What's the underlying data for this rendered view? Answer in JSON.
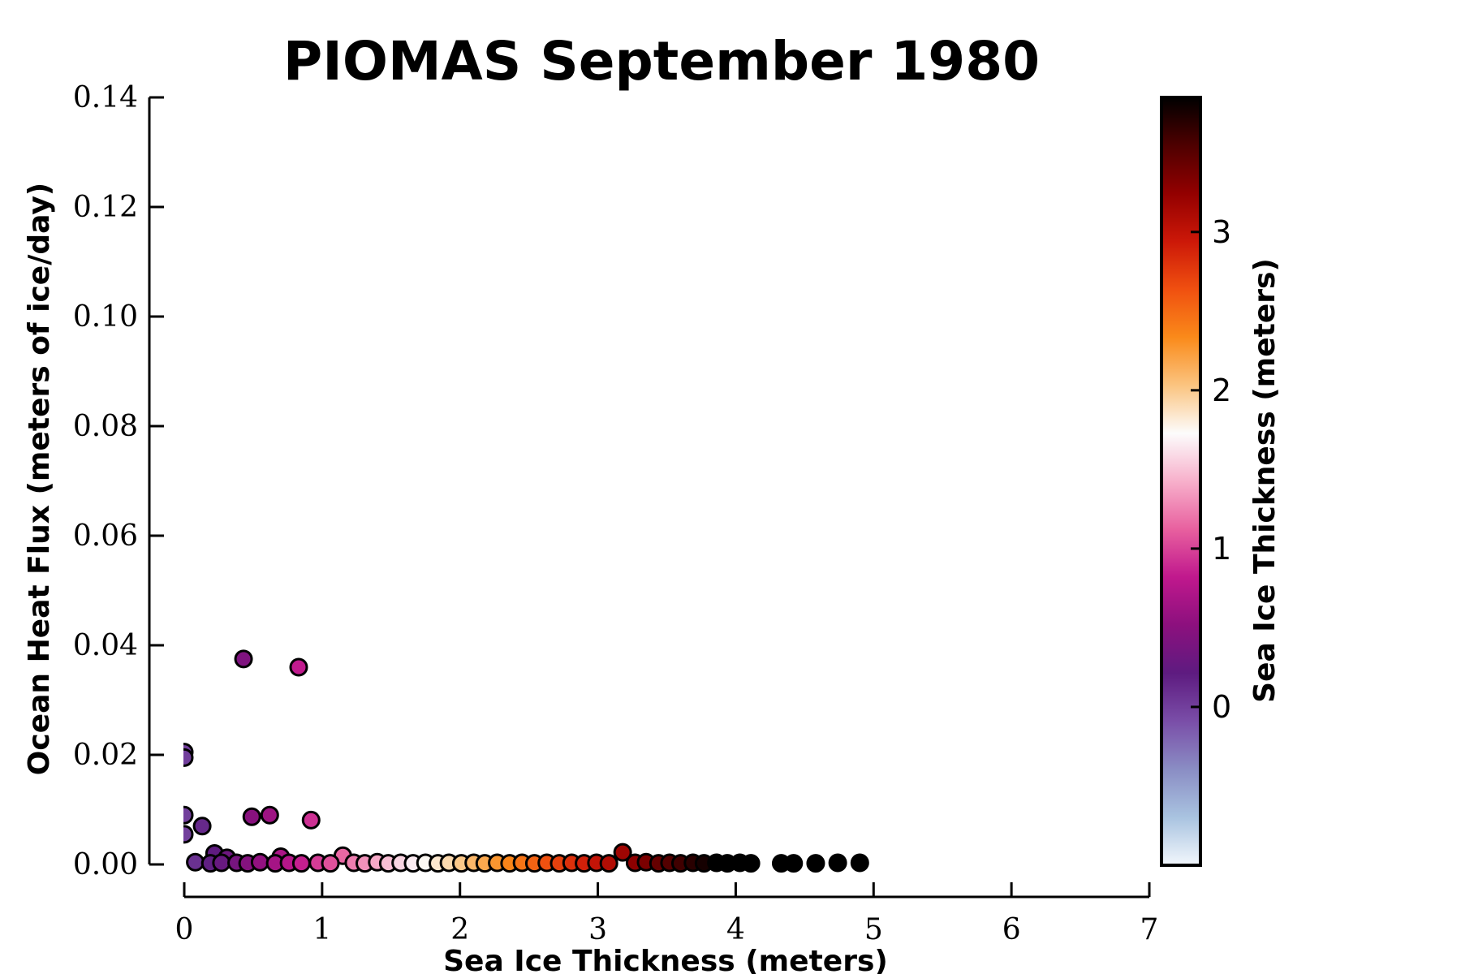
{
  "chart_data": {
    "type": "scatter",
    "title": "PIOMAS September 1980",
    "xlabel": "Sea Ice Thickness (meters)",
    "ylabel": "Ocean Heat Flux (meters of ice/day)",
    "xlim": [
      0,
      7
    ],
    "ylim": [
      0,
      0.14
    ],
    "xticks": [
      "0",
      "1",
      "2",
      "3",
      "4",
      "5",
      "6",
      "7"
    ],
    "yticks": [
      "0.00",
      "0.02",
      "0.04",
      "0.06",
      "0.08",
      "0.10",
      "0.12",
      "0.14"
    ],
    "grid": false,
    "colorbar": {
      "label": "Sea Ice Thickness (meters)",
      "range": [
        -1,
        3.85
      ],
      "ticks": [
        "0",
        "1",
        "2",
        "3"
      ],
      "colors": [
        "#f2f7fc",
        "#a9c3e0",
        "#8a8dc4",
        "#7a4ea8",
        "#5e1b80",
        "#8c107e",
        "#c0188d",
        "#e8609f",
        "#f7b0cb",
        "#fcfcfc",
        "#fbc480",
        "#fa8a1a",
        "#f05010",
        "#cc1808",
        "#930000",
        "#4e0000",
        "#000000"
      ]
    },
    "points": [
      {
        "x": 0.43,
        "y": 0.0375
      },
      {
        "x": 0.83,
        "y": 0.036
      },
      {
        "x": 0.0,
        "y": 0.0205
      },
      {
        "x": 0.0,
        "y": 0.0195
      },
      {
        "x": 0.0,
        "y": 0.009
      },
      {
        "x": 0.0,
        "y": 0.0055
      },
      {
        "x": 0.13,
        "y": 0.007
      },
      {
        "x": 0.49,
        "y": 0.0087
      },
      {
        "x": 0.62,
        "y": 0.009
      },
      {
        "x": 0.92,
        "y": 0.0081
      },
      {
        "x": 0.22,
        "y": 0.002
      },
      {
        "x": 0.31,
        "y": 0.0012
      },
      {
        "x": 0.7,
        "y": 0.0014
      },
      {
        "x": 1.15,
        "y": 0.0016
      },
      {
        "x": 3.18,
        "y": 0.0022
      },
      {
        "x": 0.08,
        "y": 0.0004
      },
      {
        "x": 0.19,
        "y": 0.0002
      },
      {
        "x": 0.27,
        "y": 0.0003
      },
      {
        "x": 0.38,
        "y": 0.0003
      },
      {
        "x": 0.46,
        "y": 0.0002
      },
      {
        "x": 0.55,
        "y": 0.0004
      },
      {
        "x": 0.66,
        "y": 0.0002
      },
      {
        "x": 0.76,
        "y": 0.0003
      },
      {
        "x": 0.85,
        "y": 0.0002
      },
      {
        "x": 0.97,
        "y": 0.0003
      },
      {
        "x": 1.06,
        "y": 0.0002
      },
      {
        "x": 1.23,
        "y": 0.0003
      },
      {
        "x": 1.31,
        "y": 0.0002
      },
      {
        "x": 1.4,
        "y": 0.0004
      },
      {
        "x": 1.48,
        "y": 0.0002
      },
      {
        "x": 1.57,
        "y": 0.0003
      },
      {
        "x": 1.66,
        "y": 0.0002
      },
      {
        "x": 1.75,
        "y": 0.0003
      },
      {
        "x": 1.84,
        "y": 0.0002
      },
      {
        "x": 1.92,
        "y": 0.0003
      },
      {
        "x": 2.01,
        "y": 0.0002
      },
      {
        "x": 2.1,
        "y": 0.0003
      },
      {
        "x": 2.18,
        "y": 0.0002
      },
      {
        "x": 2.27,
        "y": 0.0003
      },
      {
        "x": 2.36,
        "y": 0.0002
      },
      {
        "x": 2.45,
        "y": 0.0003
      },
      {
        "x": 2.54,
        "y": 0.0002
      },
      {
        "x": 2.63,
        "y": 0.0003
      },
      {
        "x": 2.72,
        "y": 0.0002
      },
      {
        "x": 2.81,
        "y": 0.0003
      },
      {
        "x": 2.9,
        "y": 0.0002
      },
      {
        "x": 2.99,
        "y": 0.0003
      },
      {
        "x": 3.08,
        "y": 0.0002
      },
      {
        "x": 3.27,
        "y": 0.0003
      },
      {
        "x": 3.35,
        "y": 0.0004
      },
      {
        "x": 3.44,
        "y": 0.0002
      },
      {
        "x": 3.52,
        "y": 0.0003
      },
      {
        "x": 3.6,
        "y": 0.0002
      },
      {
        "x": 3.69,
        "y": 0.0003
      },
      {
        "x": 3.77,
        "y": 0.0002
      },
      {
        "x": 3.86,
        "y": 0.0003
      },
      {
        "x": 3.94,
        "y": 0.0002
      },
      {
        "x": 4.03,
        "y": 0.0003
      },
      {
        "x": 4.11,
        "y": 0.0002
      },
      {
        "x": 4.33,
        "y": 0.0002
      },
      {
        "x": 4.42,
        "y": 0.0002
      },
      {
        "x": 4.58,
        "y": 0.0002
      },
      {
        "x": 4.74,
        "y": 0.0003
      },
      {
        "x": 4.9,
        "y": 0.0003
      }
    ]
  }
}
